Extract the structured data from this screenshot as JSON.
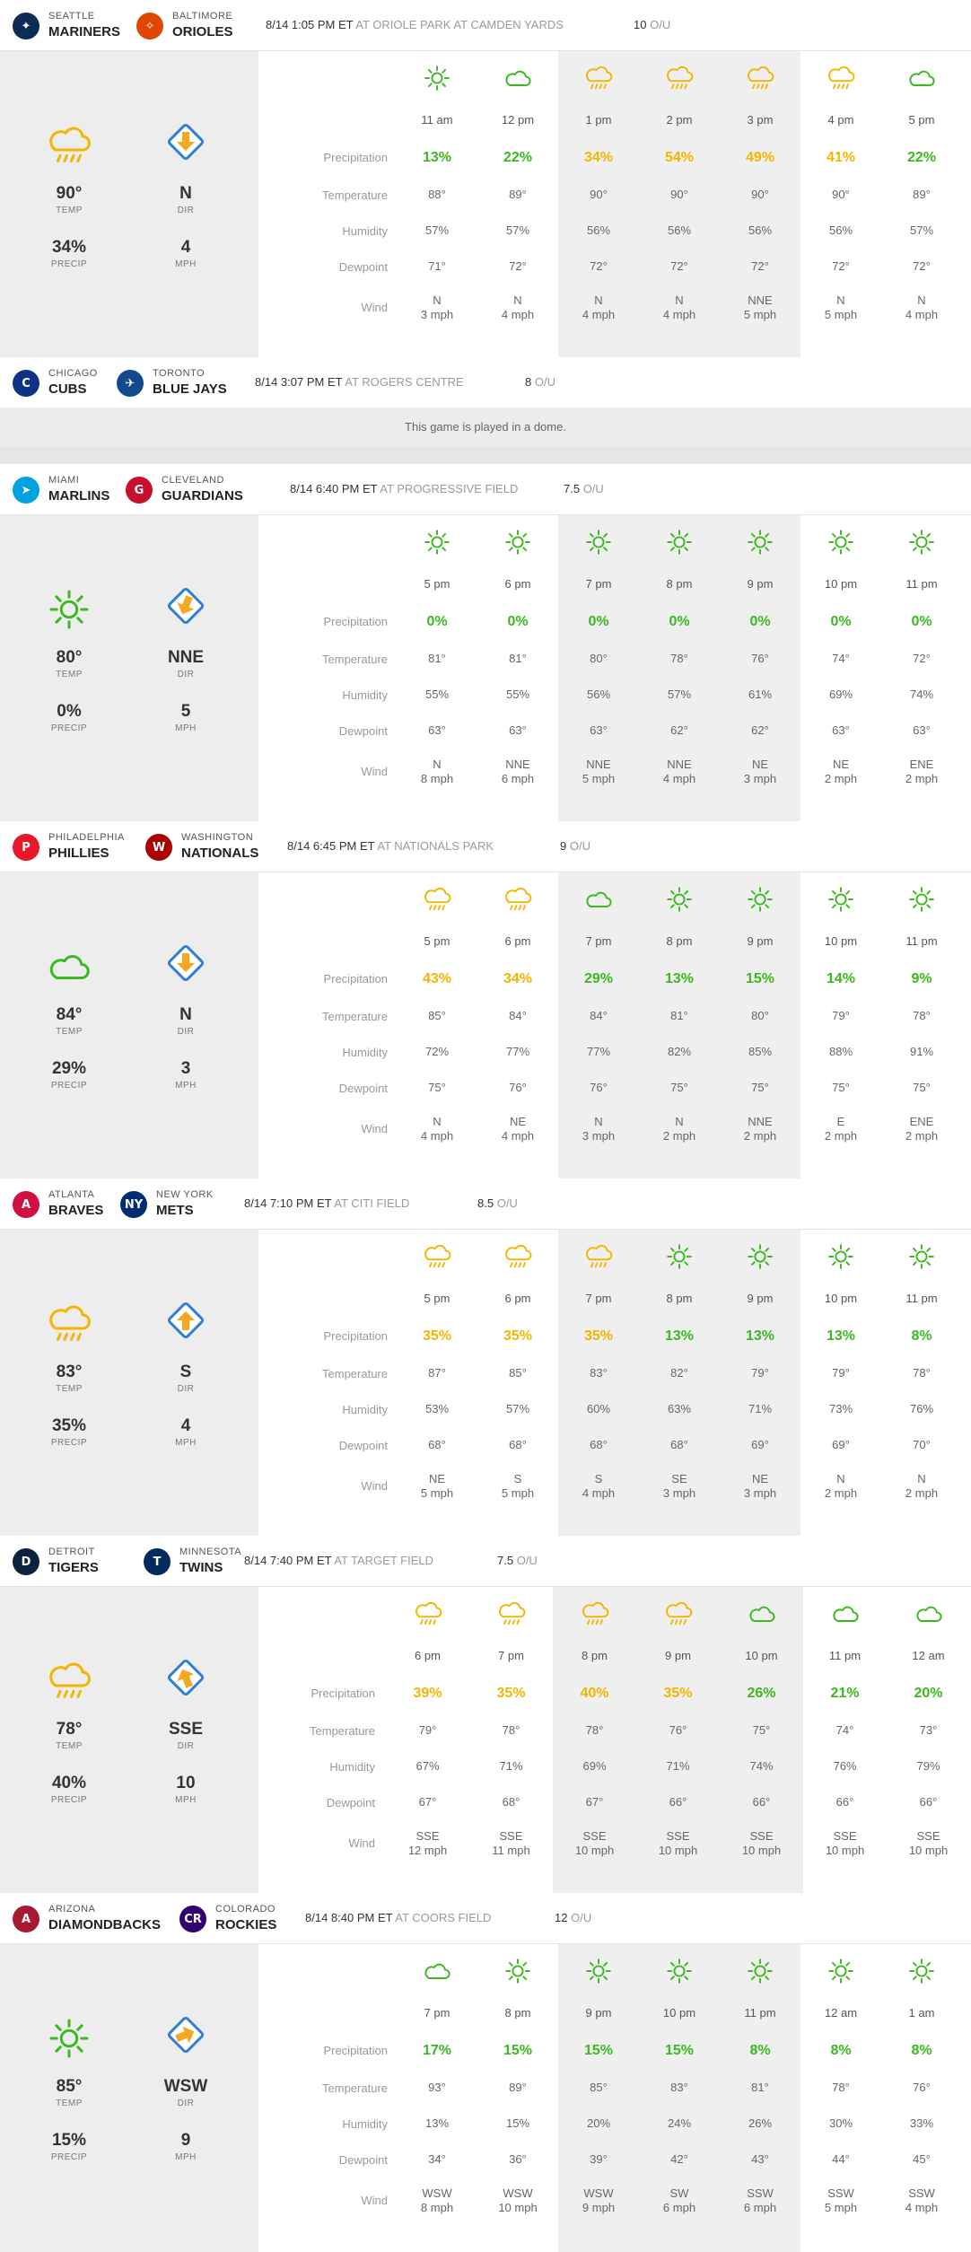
{
  "colors": {
    "sunny": "#3cb820",
    "rain": "#f5b400",
    "arrow": "#f5a623",
    "arrow_bg": "#2f7fd3"
  },
  "labels": {
    "precipitation": "Precipitation",
    "temperature": "Temperature",
    "humidity": "Humidity",
    "dewpoint": "Dewpoint",
    "wind": "Wind",
    "temp": "TEMP",
    "precip": "PRECIP",
    "dir": "DIR",
    "mph": "MPH",
    "ou": "O/U"
  },
  "games": [
    {
      "away": {
        "city": "SEATTLE",
        "name": "MARINERS",
        "logo": "mariners-logo"
      },
      "home": {
        "city": "BALTIMORE",
        "name": "ORIOLES",
        "logo": "orioles-logo"
      },
      "datetime": "8/14 1:05 PM ET",
      "venue": "AT ORIOLE PARK AT CAMDEN YARDS",
      "ou": "10",
      "summary": {
        "icon": "rain",
        "temp": "90°",
        "precip": "34%",
        "dir": "N",
        "mph": "4",
        "arrow": 0
      },
      "hours": [
        {
          "icon": "sun",
          "hour": "11 am",
          "precip": "13%",
          "color": "g",
          "temp": "88°",
          "humidity": "57%",
          "dewpoint": "71°",
          "wind_dir": "N",
          "wind_speed": "3 mph"
        },
        {
          "icon": "cloud",
          "hour": "12 pm",
          "precip": "22%",
          "color": "g",
          "temp": "89°",
          "humidity": "57%",
          "dewpoint": "72°",
          "wind_dir": "N",
          "wind_speed": "4 mph"
        },
        {
          "icon": "rain",
          "hour": "1 pm",
          "precip": "34%",
          "color": "o",
          "temp": "90°",
          "humidity": "56%",
          "dewpoint": "72°",
          "wind_dir": "N",
          "wind_speed": "4 mph"
        },
        {
          "icon": "rain",
          "hour": "2 pm",
          "precip": "54%",
          "color": "o",
          "temp": "90°",
          "humidity": "56%",
          "dewpoint": "72°",
          "wind_dir": "N",
          "wind_speed": "4 mph"
        },
        {
          "icon": "rain",
          "hour": "3 pm",
          "precip": "49%",
          "color": "o",
          "temp": "90°",
          "humidity": "56%",
          "dewpoint": "72°",
          "wind_dir": "NNE",
          "wind_speed": "5 mph"
        },
        {
          "icon": "rain",
          "hour": "4 pm",
          "precip": "41%",
          "color": "o",
          "temp": "90°",
          "humidity": "56%",
          "dewpoint": "72°",
          "wind_dir": "N",
          "wind_speed": "5 mph"
        },
        {
          "icon": "cloud",
          "hour": "5 pm",
          "precip": "22%",
          "color": "g",
          "temp": "89°",
          "humidity": "57%",
          "dewpoint": "72°",
          "wind_dir": "N",
          "wind_speed": "4 mph"
        }
      ]
    },
    {
      "away": {
        "city": "CHICAGO",
        "name": "CUBS",
        "logo": "cubs-logo"
      },
      "home": {
        "city": "TORONTO",
        "name": "BLUE JAYS",
        "logo": "blue-jays-logo"
      },
      "datetime": "8/14 3:07 PM ET",
      "venue": "AT ROGERS CENTRE",
      "ou": "8",
      "dome_note": "This game is played in a dome."
    },
    {
      "away": {
        "city": "MIAMI",
        "name": "MARLINS",
        "logo": "marlins-logo"
      },
      "home": {
        "city": "CLEVELAND",
        "name": "GUARDIANS",
        "logo": "guardians-logo"
      },
      "datetime": "8/14 6:40 PM ET",
      "venue": "AT PROGRESSIVE FIELD",
      "ou": "7.5",
      "summary": {
        "icon": "sun",
        "temp": "80°",
        "precip": "0%",
        "dir": "NNE",
        "mph": "5",
        "arrow": 22
      },
      "hours": [
        {
          "icon": "sun",
          "hour": "5 pm",
          "precip": "0%",
          "color": "g",
          "temp": "81°",
          "humidity": "55%",
          "dewpoint": "63°",
          "wind_dir": "N",
          "wind_speed": "8 mph"
        },
        {
          "icon": "sun",
          "hour": "6 pm",
          "precip": "0%",
          "color": "g",
          "temp": "81°",
          "humidity": "55%",
          "dewpoint": "63°",
          "wind_dir": "NNE",
          "wind_speed": "6 mph"
        },
        {
          "icon": "sun",
          "hour": "7 pm",
          "precip": "0%",
          "color": "g",
          "temp": "80°",
          "humidity": "56%",
          "dewpoint": "63°",
          "wind_dir": "NNE",
          "wind_speed": "5 mph"
        },
        {
          "icon": "sun",
          "hour": "8 pm",
          "precip": "0%",
          "color": "g",
          "temp": "78°",
          "humidity": "57%",
          "dewpoint": "62°",
          "wind_dir": "NNE",
          "wind_speed": "4 mph"
        },
        {
          "icon": "sun",
          "hour": "9 pm",
          "precip": "0%",
          "color": "g",
          "temp": "76°",
          "humidity": "61%",
          "dewpoint": "62°",
          "wind_dir": "NE",
          "wind_speed": "3 mph"
        },
        {
          "icon": "sun",
          "hour": "10 pm",
          "precip": "0%",
          "color": "g",
          "temp": "74°",
          "humidity": "69%",
          "dewpoint": "63°",
          "wind_dir": "NE",
          "wind_speed": "2 mph"
        },
        {
          "icon": "sun",
          "hour": "11 pm",
          "precip": "0%",
          "color": "g",
          "temp": "72°",
          "humidity": "74%",
          "dewpoint": "63°",
          "wind_dir": "ENE",
          "wind_speed": "2 mph"
        }
      ]
    },
    {
      "away": {
        "city": "PHILADELPHIA",
        "name": "PHILLIES",
        "logo": "phillies-logo"
      },
      "home": {
        "city": "WASHINGTON",
        "name": "NATIONALS",
        "logo": "nationals-logo"
      },
      "datetime": "8/14 6:45 PM ET",
      "venue": "AT NATIONALS PARK",
      "ou": "9",
      "summary": {
        "icon": "cloud",
        "temp": "84°",
        "precip": "29%",
        "dir": "N",
        "mph": "3",
        "arrow": 0
      },
      "hours": [
        {
          "icon": "rain",
          "hour": "5 pm",
          "precip": "43%",
          "color": "o",
          "temp": "85°",
          "humidity": "72%",
          "dewpoint": "75°",
          "wind_dir": "N",
          "wind_speed": "4 mph"
        },
        {
          "icon": "rain",
          "hour": "6 pm",
          "precip": "34%",
          "color": "o",
          "temp": "84°",
          "humidity": "77%",
          "dewpoint": "76°",
          "wind_dir": "NE",
          "wind_speed": "4 mph"
        },
        {
          "icon": "cloud",
          "hour": "7 pm",
          "precip": "29%",
          "color": "g",
          "temp": "84°",
          "humidity": "77%",
          "dewpoint": "76°",
          "wind_dir": "N",
          "wind_speed": "3 mph"
        },
        {
          "icon": "sun",
          "hour": "8 pm",
          "precip": "13%",
          "color": "g",
          "temp": "81°",
          "humidity": "82%",
          "dewpoint": "75°",
          "wind_dir": "N",
          "wind_speed": "2 mph"
        },
        {
          "icon": "sun",
          "hour": "9 pm",
          "precip": "15%",
          "color": "g",
          "temp": "80°",
          "humidity": "85%",
          "dewpoint": "75°",
          "wind_dir": "NNE",
          "wind_speed": "2 mph"
        },
        {
          "icon": "sun",
          "hour": "10 pm",
          "precip": "14%",
          "color": "g",
          "temp": "79°",
          "humidity": "88%",
          "dewpoint": "75°",
          "wind_dir": "E",
          "wind_speed": "2 mph"
        },
        {
          "icon": "sun",
          "hour": "11 pm",
          "precip": "9%",
          "color": "g",
          "temp": "78°",
          "humidity": "91%",
          "dewpoint": "75°",
          "wind_dir": "ENE",
          "wind_speed": "2 mph"
        }
      ]
    },
    {
      "away": {
        "city": "ATLANTA",
        "name": "BRAVES",
        "logo": "braves-logo"
      },
      "home": {
        "city": "NEW YORK",
        "name": "METS",
        "logo": "mets-logo"
      },
      "datetime": "8/14 7:10 PM ET",
      "venue": "AT CITI FIELD",
      "ou": "8.5",
      "summary": {
        "icon": "rain",
        "temp": "83°",
        "precip": "35%",
        "dir": "S",
        "mph": "4",
        "arrow": 180
      },
      "hours": [
        {
          "icon": "rain",
          "hour": "5 pm",
          "precip": "35%",
          "color": "o",
          "temp": "87°",
          "humidity": "53%",
          "dewpoint": "68°",
          "wind_dir": "NE",
          "wind_speed": "5 mph"
        },
        {
          "icon": "rain",
          "hour": "6 pm",
          "precip": "35%",
          "color": "o",
          "temp": "85°",
          "humidity": "57%",
          "dewpoint": "68°",
          "wind_dir": "S",
          "wind_speed": "5 mph"
        },
        {
          "icon": "rain",
          "hour": "7 pm",
          "precip": "35%",
          "color": "o",
          "temp": "83°",
          "humidity": "60%",
          "dewpoint": "68°",
          "wind_dir": "S",
          "wind_speed": "4 mph"
        },
        {
          "icon": "sun",
          "hour": "8 pm",
          "precip": "13%",
          "color": "g",
          "temp": "82°",
          "humidity": "63%",
          "dewpoint": "68°",
          "wind_dir": "SE",
          "wind_speed": "3 mph"
        },
        {
          "icon": "sun",
          "hour": "9 pm",
          "precip": "13%",
          "color": "g",
          "temp": "79°",
          "humidity": "71%",
          "dewpoint": "69°",
          "wind_dir": "NE",
          "wind_speed": "3 mph"
        },
        {
          "icon": "sun",
          "hour": "10 pm",
          "precip": "13%",
          "color": "g",
          "temp": "79°",
          "humidity": "73%",
          "dewpoint": "69°",
          "wind_dir": "N",
          "wind_speed": "2 mph"
        },
        {
          "icon": "sun",
          "hour": "11 pm",
          "precip": "8%",
          "color": "g",
          "temp": "78°",
          "humidity": "76%",
          "dewpoint": "70°",
          "wind_dir": "N",
          "wind_speed": "2 mph"
        }
      ]
    },
    {
      "away": {
        "city": "DETROIT",
        "name": "TIGERS",
        "logo": "tigers-logo"
      },
      "home": {
        "city": "MINNESOTA",
        "name": "TWINS",
        "logo": "twins-logo"
      },
      "datetime": "8/14 7:40 PM ET",
      "venue": "AT TARGET FIELD",
      "ou": "7.5",
      "summary": {
        "icon": "rain",
        "temp": "78°",
        "precip": "40%",
        "dir": "SSE",
        "mph": "10",
        "arrow": 157
      },
      "hours": [
        {
          "icon": "rain",
          "hour": "6 pm",
          "precip": "39%",
          "color": "o",
          "temp": "79°",
          "humidity": "67%",
          "dewpoint": "67°",
          "wind_dir": "SSE",
          "wind_speed": "12 mph"
        },
        {
          "icon": "rain",
          "hour": "7 pm",
          "precip": "35%",
          "color": "o",
          "temp": "78°",
          "humidity": "71%",
          "dewpoint": "68°",
          "wind_dir": "SSE",
          "wind_speed": "11 mph"
        },
        {
          "icon": "rain",
          "hour": "8 pm",
          "precip": "40%",
          "color": "o",
          "temp": "78°",
          "humidity": "69%",
          "dewpoint": "67°",
          "wind_dir": "SSE",
          "wind_speed": "10 mph"
        },
        {
          "icon": "rain",
          "hour": "9 pm",
          "precip": "35%",
          "color": "o",
          "temp": "76°",
          "humidity": "71%",
          "dewpoint": "66°",
          "wind_dir": "SSE",
          "wind_speed": "10 mph"
        },
        {
          "icon": "cloud",
          "hour": "10 pm",
          "precip": "26%",
          "color": "g",
          "temp": "75°",
          "humidity": "74%",
          "dewpoint": "66°",
          "wind_dir": "SSE",
          "wind_speed": "10 mph"
        },
        {
          "icon": "cloud",
          "hour": "11 pm",
          "precip": "21%",
          "color": "g",
          "temp": "74°",
          "humidity": "76%",
          "dewpoint": "66°",
          "wind_dir": "SSE",
          "wind_speed": "10 mph"
        },
        {
          "icon": "cloud",
          "hour": "12 am",
          "precip": "20%",
          "color": "g",
          "temp": "73°",
          "humidity": "79%",
          "dewpoint": "66°",
          "wind_dir": "SSE",
          "wind_speed": "10 mph"
        }
      ]
    },
    {
      "away": {
        "city": "ARIZONA",
        "name": "DIAMONDBACKS",
        "logo": "diamondbacks-logo"
      },
      "home": {
        "city": "COLORADO",
        "name": "ROCKIES",
        "logo": "rockies-logo"
      },
      "datetime": "8/14 8:40 PM ET",
      "venue": "AT COORS FIELD",
      "ou": "12",
      "summary": {
        "icon": "sun",
        "temp": "85°",
        "precip": "15%",
        "dir": "WSW",
        "mph": "9",
        "arrow": 248
      },
      "hours": [
        {
          "icon": "cloud",
          "hour": "7 pm",
          "precip": "17%",
          "color": "g",
          "temp": "93°",
          "humidity": "13%",
          "dewpoint": "34°",
          "wind_dir": "WSW",
          "wind_speed": "8 mph"
        },
        {
          "icon": "sun",
          "hour": "8 pm",
          "precip": "15%",
          "color": "g",
          "temp": "89°",
          "humidity": "15%",
          "dewpoint": "36°",
          "wind_dir": "WSW",
          "wind_speed": "10 mph"
        },
        {
          "icon": "sun",
          "hour": "9 pm",
          "precip": "15%",
          "color": "g",
          "temp": "85°",
          "humidity": "20%",
          "dewpoint": "39°",
          "wind_dir": "WSW",
          "wind_speed": "9 mph"
        },
        {
          "icon": "sun",
          "hour": "10 pm",
          "precip": "15%",
          "color": "g",
          "temp": "83°",
          "humidity": "24%",
          "dewpoint": "42°",
          "wind_dir": "SW",
          "wind_speed": "6 mph"
        },
        {
          "icon": "sun",
          "hour": "11 pm",
          "precip": "8%",
          "color": "g",
          "temp": "81°",
          "humidity": "26%",
          "dewpoint": "43°",
          "wind_dir": "SSW",
          "wind_speed": "6 mph"
        },
        {
          "icon": "sun",
          "hour": "12 am",
          "precip": "8%",
          "color": "g",
          "temp": "78°",
          "humidity": "30%",
          "dewpoint": "44°",
          "wind_dir": "SSW",
          "wind_speed": "5 mph"
        },
        {
          "icon": "sun",
          "hour": "1 am",
          "precip": "8%",
          "color": "g",
          "temp": "76°",
          "humidity": "33%",
          "dewpoint": "45°",
          "wind_dir": "SSW",
          "wind_speed": "4 mph"
        }
      ]
    }
  ]
}
